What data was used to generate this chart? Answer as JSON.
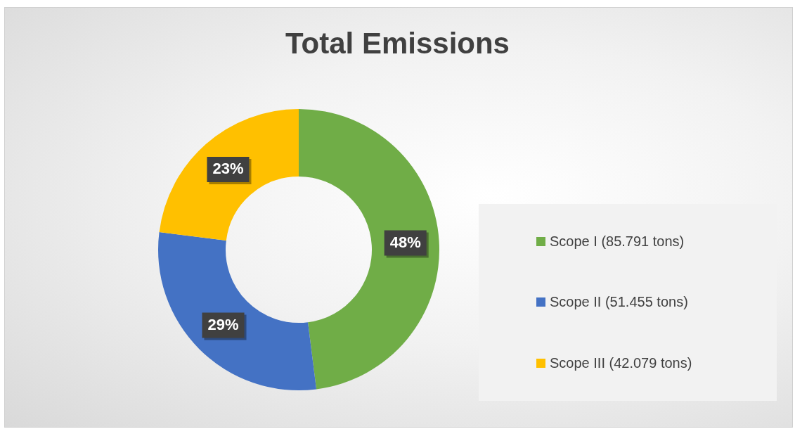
{
  "chart_data": {
    "type": "donut",
    "title": "Total Emissions",
    "categories": [
      "Scope I (85.791 tons)",
      "Scope II (51.455 tons)",
      "Scope III (42.079 tons)"
    ],
    "values": [
      48,
      29,
      23
    ],
    "colors": [
      "#70ad47",
      "#4472c4",
      "#ffc000"
    ],
    "value_labels": [
      "48%",
      "29%",
      "23%"
    ],
    "legend": "right"
  }
}
